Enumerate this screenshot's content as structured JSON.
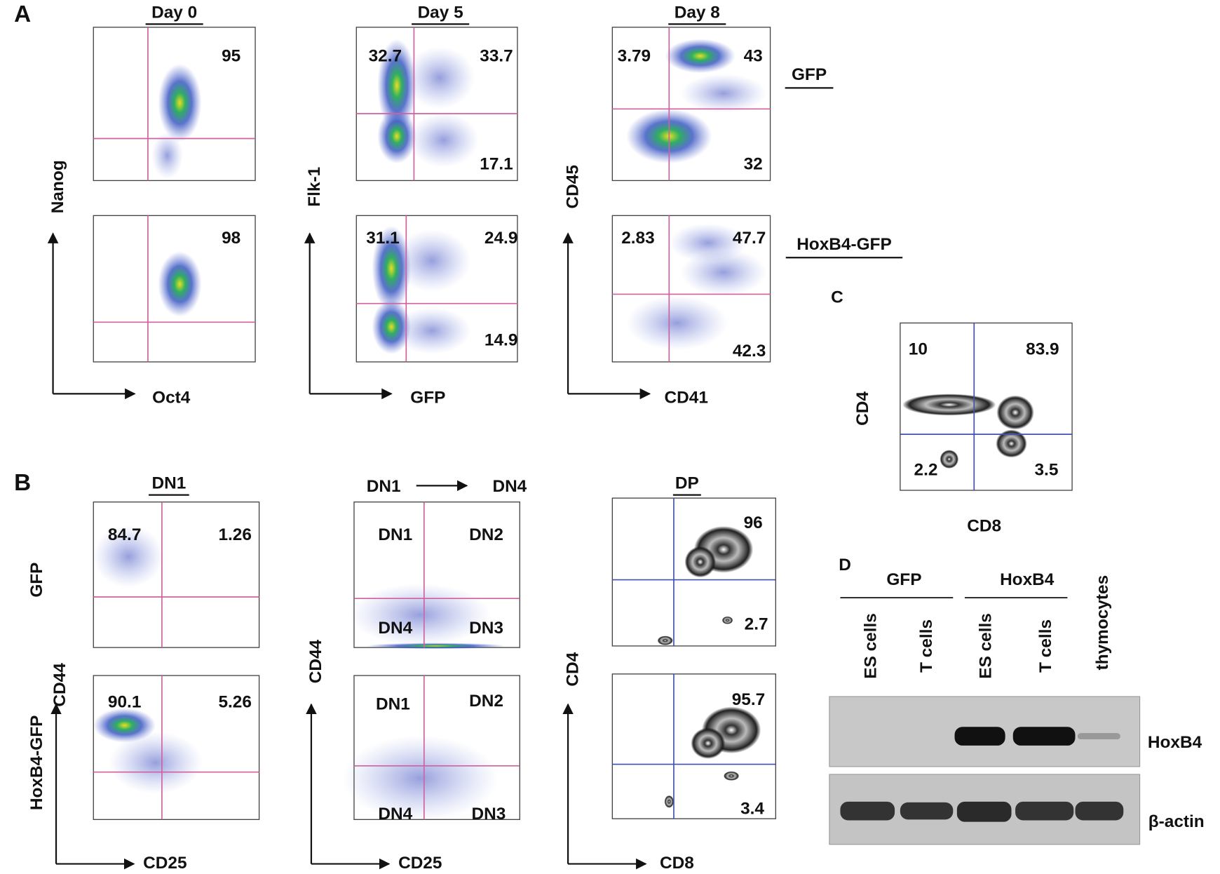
{
  "panel_labels": [
    "A",
    "B",
    "C",
    "D"
  ],
  "panel_a": {
    "column_titles": [
      "Day 0",
      "Day 5",
      "Day 8"
    ],
    "row_labels": [
      "GFP",
      "HoxB4-GFP"
    ],
    "y_axis_labels": [
      "Nanog",
      "Flk-1",
      "CD45"
    ],
    "x_axis_labels": [
      "Oct4",
      "GFP",
      "CD41"
    ],
    "plots": [
      {
        "quadrants": [
          95
        ]
      },
      {
        "quadrants": [
          98
        ]
      },
      {
        "quadrants": [
          32.7,
          33.7,
          17.1
        ]
      },
      {
        "quadrants": [
          31.1,
          24.9,
          14.9
        ]
      },
      {
        "quadrants": [
          3.79,
          43,
          32
        ]
      },
      {
        "quadrants": [
          2.83,
          47.7,
          42.3
        ]
      }
    ]
  },
  "panel_b": {
    "title_left": "DN1",
    "title_middle_from": "DN1",
    "title_middle_to": "DN4",
    "title_right": "DP",
    "row_labels": [
      "GFP",
      "HoxB4-GFP"
    ],
    "y_axis_labels": [
      "CD44",
      "CD44",
      "CD4"
    ],
    "x_axis_labels": [
      "CD25",
      "CD25",
      "CD8"
    ],
    "plots": [
      {
        "quadrants": [
          84.7,
          1.26
        ]
      },
      {
        "quadrants": [
          90.1,
          5.26
        ]
      },
      {
        "quadrants": [
          "DN1",
          "DN2",
          "DN4",
          "DN3"
        ]
      },
      {
        "quadrants": [
          "DN1",
          "DN2",
          "DN4",
          "DN3"
        ]
      },
      {
        "quadrants": [
          96,
          2.7
        ]
      },
      {
        "quadrants": [
          95.7,
          3.4
        ]
      }
    ]
  },
  "panel_c": {
    "y_axis_label": "CD4",
    "x_axis_label": "CD8",
    "quadrants": [
      10,
      83.9,
      2.2,
      3.5
    ]
  },
  "panel_d": {
    "groups": [
      "GFP",
      "HoxB4"
    ],
    "lanes": [
      "ES cells",
      "T cells",
      "ES cells",
      "T cells",
      "thymocytes"
    ],
    "bands": [
      "HoxB4",
      "β-actin"
    ]
  }
}
